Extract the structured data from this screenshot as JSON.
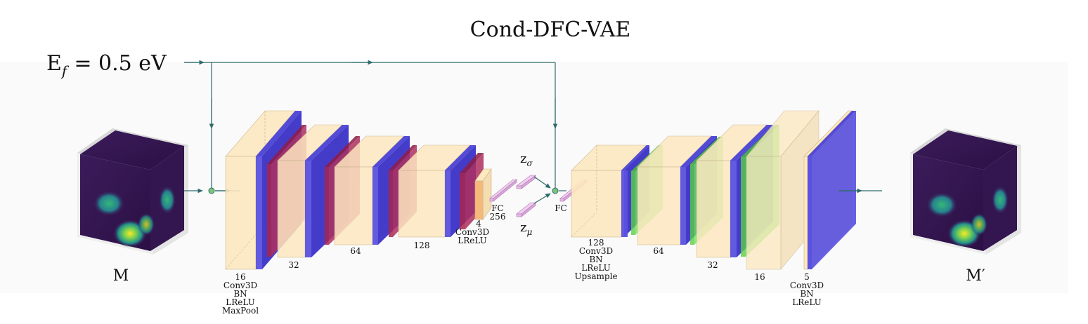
{
  "title": "Cond-DFC-VAE",
  "condition": {
    "symbol": "E",
    "subscript": "f",
    "equation": "= 0.5 eV"
  },
  "input_label": "M",
  "output_label_base": "M",
  "output_label_prime": "′",
  "latent": {
    "sigma": {
      "base": "z",
      "sub": "σ"
    },
    "mu": {
      "base": "z",
      "sub": "μ"
    }
  },
  "encoder": {
    "block1": [
      "16",
      "Conv3D",
      "BN",
      "LReLU",
      "MaxPool"
    ],
    "block2": [
      "32"
    ],
    "block3": [
      "64"
    ],
    "block4": [
      "128"
    ],
    "block5": [
      "4",
      "Conv3D",
      "LReLU"
    ],
    "fc": [
      "FC",
      "256"
    ]
  },
  "decoder": {
    "fc": [
      "FC"
    ],
    "block1": [
      "128",
      "Conv3D",
      "BN",
      "LReLU",
      "Upsample"
    ],
    "block2": [
      "64"
    ],
    "block3": [
      "32"
    ],
    "block4": [
      "16"
    ],
    "block5": [
      "5",
      "Conv3D",
      "BN",
      "LReLU"
    ]
  },
  "colors": {
    "conv": "#fde8c0",
    "bn": "#5a52e0",
    "pool": "#a8254f",
    "upsample": "#6ee85a",
    "fc": "#e8b8e8",
    "arrow": "#2f6b6b",
    "node": "#7bc47b"
  }
}
